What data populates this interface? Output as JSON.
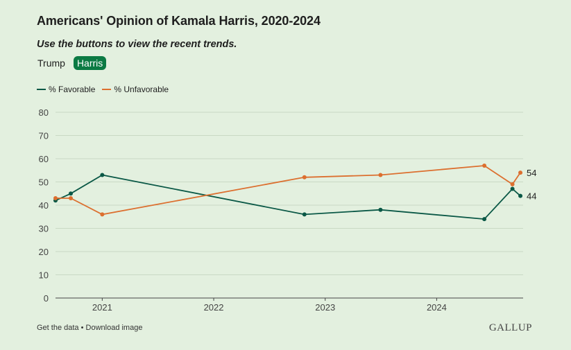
{
  "title": "Americans' Opinion of Kamala Harris, 2020-2024",
  "subtitle": "Use the buttons to view the recent trends.",
  "buttons": {
    "trump": "Trump",
    "harris": "Harris"
  },
  "footer": {
    "get_data": "Get the data",
    "separator": " • ",
    "download": "Download image"
  },
  "brand": "GALLUP",
  "colors": {
    "favorable": "#0a5846",
    "unfavorable": "#dc6f2f",
    "active_button": "#0b7a43",
    "background": "#e3f0df"
  },
  "chart_data": {
    "type": "line",
    "title": "Americans' Opinion of Kamala Harris, 2020-2024",
    "xlabel": "",
    "ylabel": "",
    "ylim": [
      0,
      80
    ],
    "y_ticks": [
      0,
      10,
      20,
      30,
      40,
      50,
      60,
      70,
      80
    ],
    "x_ticks": [
      "2021",
      "2022",
      "2023",
      "2024"
    ],
    "xlim": [
      "2020-08-01",
      "2024-10-10"
    ],
    "grid": true,
    "legend_position": "top-left",
    "series": [
      {
        "name": "% Favorable",
        "color": "#0a5846",
        "points": [
          {
            "x": "2020-08-01",
            "y": 42
          },
          {
            "x": "2020-09-20",
            "y": 45
          },
          {
            "x": "2021-01-01",
            "y": 53
          },
          {
            "x": "2022-10-25",
            "y": 36
          },
          {
            "x": "2023-07-01",
            "y": 38
          },
          {
            "x": "2024-06-05",
            "y": 34
          },
          {
            "x": "2024-09-05",
            "y": 47
          },
          {
            "x": "2024-10-01",
            "y": 44
          }
        ],
        "end_label": "44"
      },
      {
        "name": "% Unfavorable",
        "color": "#dc6f2f",
        "points": [
          {
            "x": "2020-08-01",
            "y": 43
          },
          {
            "x": "2020-09-20",
            "y": 43
          },
          {
            "x": "2021-01-01",
            "y": 36
          },
          {
            "x": "2022-10-25",
            "y": 52
          },
          {
            "x": "2023-07-01",
            "y": 53
          },
          {
            "x": "2024-06-05",
            "y": 57
          },
          {
            "x": "2024-09-05",
            "y": 49
          },
          {
            "x": "2024-10-01",
            "y": 54
          }
        ],
        "end_label": "54"
      }
    ]
  }
}
